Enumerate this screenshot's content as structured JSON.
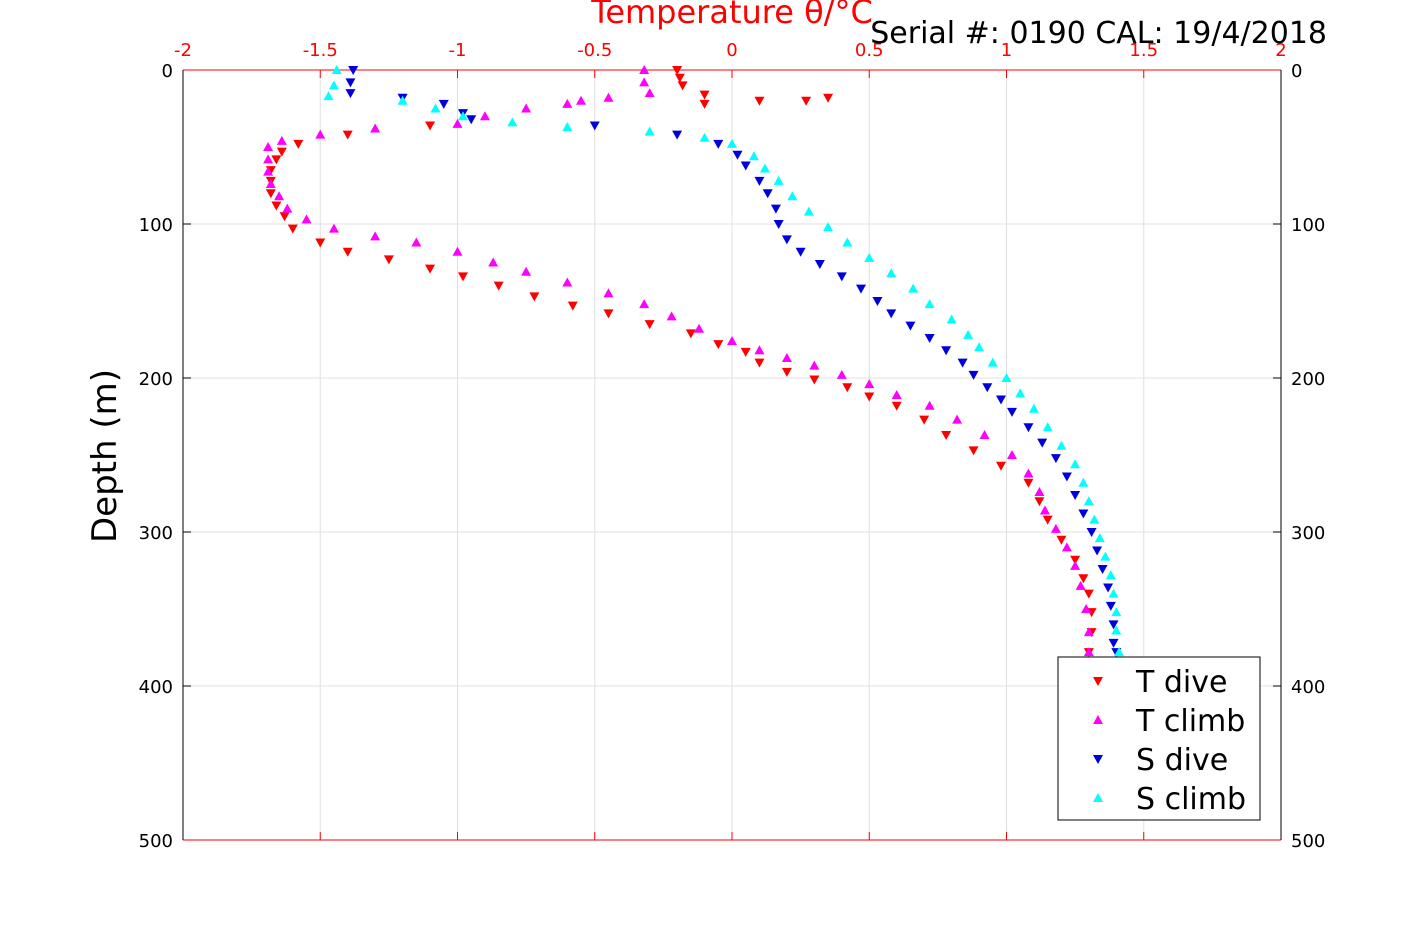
{
  "chart_data": {
    "type": "scatter",
    "title": "Serial #: 0190  CAL: 19/4/2018",
    "xlabel": "Temperature θ/°C",
    "ylabel": "Depth (m)",
    "xlim": [
      -2,
      2
    ],
    "ylim": [
      0,
      500
    ],
    "y_reversed": true,
    "x_axis_position": "top",
    "x_ticks": [
      "-2",
      "-1.5",
      "-1",
      "-0.5",
      "0",
      "0.5",
      "1",
      "1.5",
      "2"
    ],
    "y_ticks": [
      "0",
      "100",
      "200",
      "300",
      "400",
      "500"
    ],
    "grid": true,
    "legend_position": "bottom-right",
    "colors": {
      "axis_x": "#ff0000",
      "axis_y": "#000000",
      "grid": "#e0e0e0"
    },
    "series": [
      {
        "name": "T dive",
        "color": "#ff0000",
        "marker": "triangle-down",
        "points": [
          [
            -0.2,
            0
          ],
          [
            -0.19,
            5
          ],
          [
            -0.18,
            10
          ],
          [
            -0.1,
            16
          ],
          [
            0.1,
            20
          ],
          [
            0.27,
            20
          ],
          [
            0.35,
            18
          ],
          [
            -0.1,
            22
          ],
          [
            -1.1,
            36
          ],
          [
            -1.4,
            42
          ],
          [
            -1.58,
            48
          ],
          [
            -1.64,
            53
          ],
          [
            -1.66,
            58
          ],
          [
            -1.68,
            65
          ],
          [
            -1.68,
            72
          ],
          [
            -1.68,
            80
          ],
          [
            -1.66,
            88
          ],
          [
            -1.63,
            95
          ],
          [
            -1.6,
            103
          ],
          [
            -1.5,
            112
          ],
          [
            -1.4,
            118
          ],
          [
            -1.25,
            123
          ],
          [
            -1.1,
            129
          ],
          [
            -0.98,
            134
          ],
          [
            -0.85,
            140
          ],
          [
            -0.72,
            147
          ],
          [
            -0.58,
            153
          ],
          [
            -0.45,
            158
          ],
          [
            -0.3,
            165
          ],
          [
            -0.15,
            171
          ],
          [
            -0.05,
            178
          ],
          [
            0.05,
            183
          ],
          [
            0.1,
            190
          ],
          [
            0.2,
            196
          ],
          [
            0.3,
            201
          ],
          [
            0.42,
            206
          ],
          [
            0.5,
            212
          ],
          [
            0.6,
            218
          ],
          [
            0.7,
            227
          ],
          [
            0.78,
            237
          ],
          [
            0.88,
            247
          ],
          [
            0.98,
            257
          ],
          [
            1.08,
            268
          ],
          [
            1.12,
            280
          ],
          [
            1.15,
            292
          ],
          [
            1.2,
            305
          ],
          [
            1.25,
            318
          ],
          [
            1.28,
            330
          ],
          [
            1.3,
            340
          ],
          [
            1.31,
            352
          ],
          [
            1.31,
            365
          ],
          [
            1.3,
            378
          ]
        ]
      },
      {
        "name": "T climb",
        "color": "#ff00ff",
        "marker": "triangle-up",
        "points": [
          [
            -0.32,
            0
          ],
          [
            -0.32,
            8
          ],
          [
            -0.3,
            15
          ],
          [
            -0.45,
            18
          ],
          [
            -0.55,
            20
          ],
          [
            -0.6,
            22
          ],
          [
            -0.75,
            25
          ],
          [
            -0.9,
            30
          ],
          [
            -1.0,
            35
          ],
          [
            -1.3,
            38
          ],
          [
            -1.5,
            42
          ],
          [
            -1.64,
            46
          ],
          [
            -1.69,
            50
          ],
          [
            -1.69,
            58
          ],
          [
            -1.69,
            66
          ],
          [
            -1.68,
            74
          ],
          [
            -1.65,
            82
          ],
          [
            -1.62,
            90
          ],
          [
            -1.55,
            97
          ],
          [
            -1.45,
            103
          ],
          [
            -1.3,
            108
          ],
          [
            -1.15,
            112
          ],
          [
            -1.0,
            118
          ],
          [
            -0.87,
            125
          ],
          [
            -0.75,
            131
          ],
          [
            -0.6,
            138
          ],
          [
            -0.45,
            145
          ],
          [
            -0.32,
            152
          ],
          [
            -0.22,
            160
          ],
          [
            -0.12,
            168
          ],
          [
            0.0,
            176
          ],
          [
            0.1,
            182
          ],
          [
            0.2,
            187
          ],
          [
            0.3,
            192
          ],
          [
            0.4,
            198
          ],
          [
            0.5,
            204
          ],
          [
            0.6,
            211
          ],
          [
            0.72,
            218
          ],
          [
            0.82,
            227
          ],
          [
            0.92,
            237
          ],
          [
            1.02,
            250
          ],
          [
            1.08,
            262
          ],
          [
            1.12,
            274
          ],
          [
            1.14,
            286
          ],
          [
            1.18,
            298
          ],
          [
            1.22,
            310
          ],
          [
            1.25,
            322
          ],
          [
            1.27,
            335
          ],
          [
            1.29,
            350
          ],
          [
            1.3,
            365
          ],
          [
            1.3,
            378
          ]
        ]
      },
      {
        "name": "S dive",
        "color": "#0000dd",
        "marker": "triangle-down",
        "points": [
          [
            -1.38,
            0
          ],
          [
            -1.39,
            8
          ],
          [
            -1.39,
            15
          ],
          [
            -1.2,
            18
          ],
          [
            -1.05,
            22
          ],
          [
            -0.98,
            28
          ],
          [
            -0.95,
            32
          ],
          [
            -0.5,
            36
          ],
          [
            -0.2,
            42
          ],
          [
            -0.05,
            48
          ],
          [
            0.02,
            55
          ],
          [
            0.05,
            62
          ],
          [
            0.1,
            72
          ],
          [
            0.13,
            80
          ],
          [
            0.16,
            90
          ],
          [
            0.17,
            100
          ],
          [
            0.2,
            110
          ],
          [
            0.25,
            118
          ],
          [
            0.32,
            126
          ],
          [
            0.4,
            134
          ],
          [
            0.47,
            142
          ],
          [
            0.53,
            150
          ],
          [
            0.58,
            158
          ],
          [
            0.65,
            166
          ],
          [
            0.72,
            174
          ],
          [
            0.78,
            182
          ],
          [
            0.84,
            190
          ],
          [
            0.88,
            198
          ],
          [
            0.93,
            206
          ],
          [
            0.98,
            214
          ],
          [
            1.02,
            222
          ],
          [
            1.08,
            232
          ],
          [
            1.13,
            242
          ],
          [
            1.18,
            252
          ],
          [
            1.22,
            264
          ],
          [
            1.25,
            276
          ],
          [
            1.28,
            288
          ],
          [
            1.31,
            300
          ],
          [
            1.33,
            312
          ],
          [
            1.35,
            324
          ],
          [
            1.37,
            336
          ],
          [
            1.38,
            348
          ],
          [
            1.39,
            360
          ],
          [
            1.39,
            372
          ],
          [
            1.4,
            378
          ]
        ]
      },
      {
        "name": "S climb",
        "color": "#00ffff",
        "marker": "triangle-up",
        "points": [
          [
            -1.44,
            0
          ],
          [
            -1.45,
            10
          ],
          [
            -1.47,
            17
          ],
          [
            -1.2,
            20
          ],
          [
            -1.08,
            25
          ],
          [
            -0.98,
            30
          ],
          [
            -0.8,
            34
          ],
          [
            -0.6,
            37
          ],
          [
            -0.3,
            40
          ],
          [
            -0.1,
            44
          ],
          [
            0.0,
            48
          ],
          [
            0.08,
            56
          ],
          [
            0.12,
            64
          ],
          [
            0.17,
            72
          ],
          [
            0.22,
            82
          ],
          [
            0.28,
            92
          ],
          [
            0.35,
            102
          ],
          [
            0.42,
            112
          ],
          [
            0.5,
            122
          ],
          [
            0.58,
            132
          ],
          [
            0.66,
            142
          ],
          [
            0.72,
            152
          ],
          [
            0.8,
            162
          ],
          [
            0.86,
            172
          ],
          [
            0.9,
            180
          ],
          [
            0.95,
            190
          ],
          [
            1.0,
            200
          ],
          [
            1.05,
            210
          ],
          [
            1.1,
            220
          ],
          [
            1.15,
            232
          ],
          [
            1.2,
            244
          ],
          [
            1.25,
            256
          ],
          [
            1.28,
            268
          ],
          [
            1.3,
            280
          ],
          [
            1.32,
            292
          ],
          [
            1.34,
            304
          ],
          [
            1.36,
            316
          ],
          [
            1.38,
            328
          ],
          [
            1.39,
            340
          ],
          [
            1.4,
            352
          ],
          [
            1.4,
            364
          ],
          [
            1.41,
            378
          ]
        ]
      }
    ]
  }
}
